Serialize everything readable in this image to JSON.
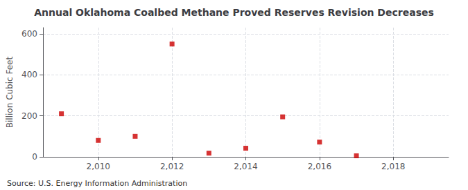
{
  "chart_data": {
    "type": "scatter",
    "title": "Annual Oklahoma Coalbed Methane Proved Reserves Revision Decreases",
    "ylabel": "Billion Cubic Feet",
    "annotations": [
      "Source: U.S. Energy Information Administration"
    ],
    "x": [
      2009,
      2010,
      2011,
      2012,
      2013,
      2014,
      2015,
      2016,
      2017
    ],
    "values": [
      210,
      80,
      100,
      550,
      18,
      42,
      195,
      72,
      5
    ],
    "color": "#cc0000",
    "marker": "square",
    "xlim": [
      2008.5,
      2019.5
    ],
    "xticks": [
      2010,
      2012,
      2014,
      2016,
      2018
    ],
    "ylim": [
      0,
      630
    ],
    "yticks": [
      0,
      200,
      400,
      600
    ],
    "grid": true
  }
}
